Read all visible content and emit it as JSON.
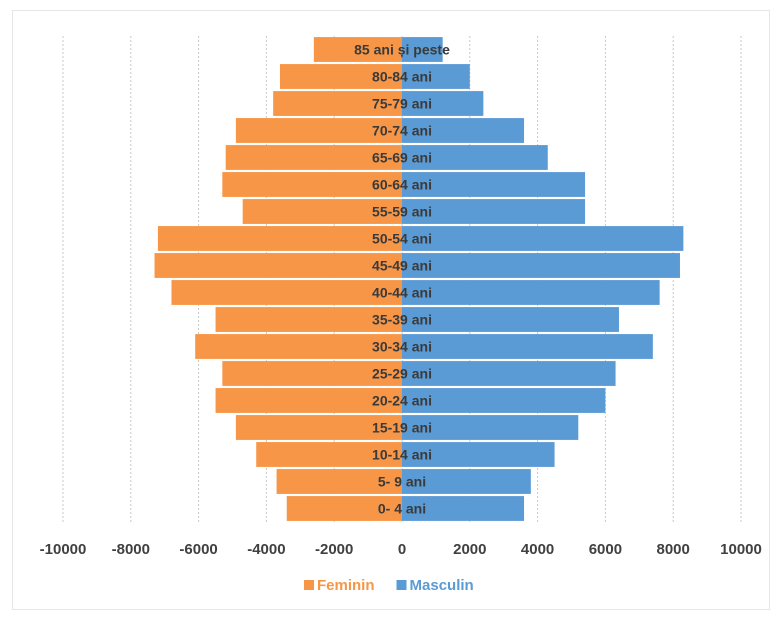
{
  "chart_data": {
    "type": "bar",
    "orientation": "horizontal",
    "title": "",
    "xlabel": "",
    "ylabel": "",
    "categories": [
      "0- 4 ani",
      "5- 9 ani",
      "10-14 ani",
      "15-19 ani",
      "20-24 ani",
      "25-29 ani",
      "30-34 ani",
      "35-39 ani",
      "40-44 ani",
      "45-49 ani",
      "50-54 ani",
      "55-59 ani",
      "60-64 ani",
      "65-69 ani",
      "70-74 ani",
      "75-79 ani",
      "80-84 ani",
      "85 ani și peste"
    ],
    "series": [
      {
        "name": "Feminin",
        "color": "#F79646",
        "values": [
          -3400,
          -3700,
          -4300,
          -4900,
          -5500,
          -5300,
          -6100,
          -5500,
          -6800,
          -7300,
          -7200,
          -4700,
          -5300,
          -5200,
          -4900,
          -3800,
          -3600,
          -2600
        ]
      },
      {
        "name": "Masculin",
        "color": "#5B9BD5",
        "values": [
          3600,
          3800,
          4500,
          5200,
          6000,
          6300,
          7400,
          6400,
          7600,
          8200,
          8300,
          5400,
          5400,
          4300,
          3600,
          2400,
          2000,
          1200
        ]
      }
    ],
    "xlim": [
      -10000,
      10000
    ],
    "xticks": [
      -10000,
      -8000,
      -6000,
      -4000,
      -2000,
      0,
      2000,
      4000,
      6000,
      8000,
      10000
    ],
    "grid": true,
    "legend": "bottom"
  }
}
